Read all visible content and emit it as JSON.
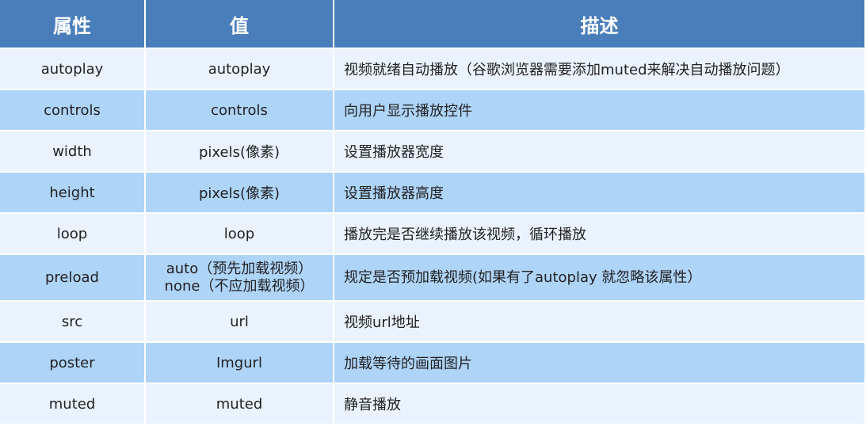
{
  "header": {
    "attribute": "属性",
    "value": "值",
    "description": "描述"
  },
  "rows": [
    {
      "attribute": "autoplay",
      "value": [
        "autoplay"
      ],
      "description": "视频就绪自动播放（谷歌浏览器需要添加muted来解决自动播放问题）"
    },
    {
      "attribute": "controls",
      "value": [
        "controls"
      ],
      "description": "向用户显示播放控件"
    },
    {
      "attribute": "width",
      "value": [
        "pixels(像素)"
      ],
      "description": "设置播放器宽度"
    },
    {
      "attribute": "height",
      "value": [
        "pixels(像素)"
      ],
      "description": "设置播放器高度"
    },
    {
      "attribute": "loop",
      "value": [
        "loop"
      ],
      "description": "播放完是否继续播放该视频，循环播放"
    },
    {
      "attribute": "preload",
      "value": [
        "auto（预先加载视频）",
        "none（不应加载视频）"
      ],
      "description": "规定是否预加载视频(如果有了autoplay 就忽略该属性）"
    },
    {
      "attribute": "src",
      "value": [
        "url"
      ],
      "description": "视频url地址"
    },
    {
      "attribute": "poster",
      "value": [
        "Imgurl"
      ],
      "description": "加载等待的画面图片"
    },
    {
      "attribute": "muted",
      "value": [
        "muted"
      ],
      "description": "静音播放"
    }
  ],
  "colors": {
    "header": "#4a7ebb",
    "row_light": "#eaf3fd",
    "row_blue": "#aed4f7"
  }
}
